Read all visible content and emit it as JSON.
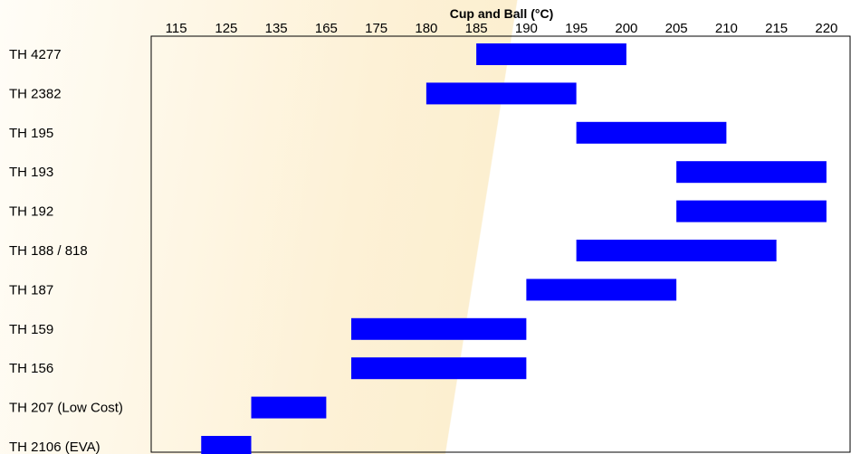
{
  "chart_data": {
    "type": "bar",
    "orientation": "horizontal-range",
    "title": "Cup and Ball (°C)",
    "x_ticks": [
      "115",
      "125",
      "135",
      "165",
      "175",
      "180",
      "185",
      "190",
      "195",
      "200",
      "205",
      "210",
      "215",
      "220"
    ],
    "categories": [
      "TH 4277",
      "TH 2382",
      "TH 195",
      "TH 193",
      "TH 192",
      "TH 188 / 818",
      "TH 187",
      "TH 159",
      "TH 156",
      "TH 207 (Low Cost)",
      "TH 2106 (EVA)"
    ],
    "ranges": [
      {
        "start": 185,
        "end": 200
      },
      {
        "start": 180,
        "end": 195
      },
      {
        "start": 195,
        "end": 210
      },
      {
        "start": 205,
        "end": 220
      },
      {
        "start": 205,
        "end": 220
      },
      {
        "start": 195,
        "end": 215
      },
      {
        "start": 190,
        "end": 205
      },
      {
        "start": 170,
        "end": 190
      },
      {
        "start": 170,
        "end": 190
      },
      {
        "start": 130,
        "end": 165
      },
      {
        "start": 120,
        "end": 130
      }
    ],
    "bar_color": "#0000ff",
    "grid": false,
    "legend": "none"
  }
}
